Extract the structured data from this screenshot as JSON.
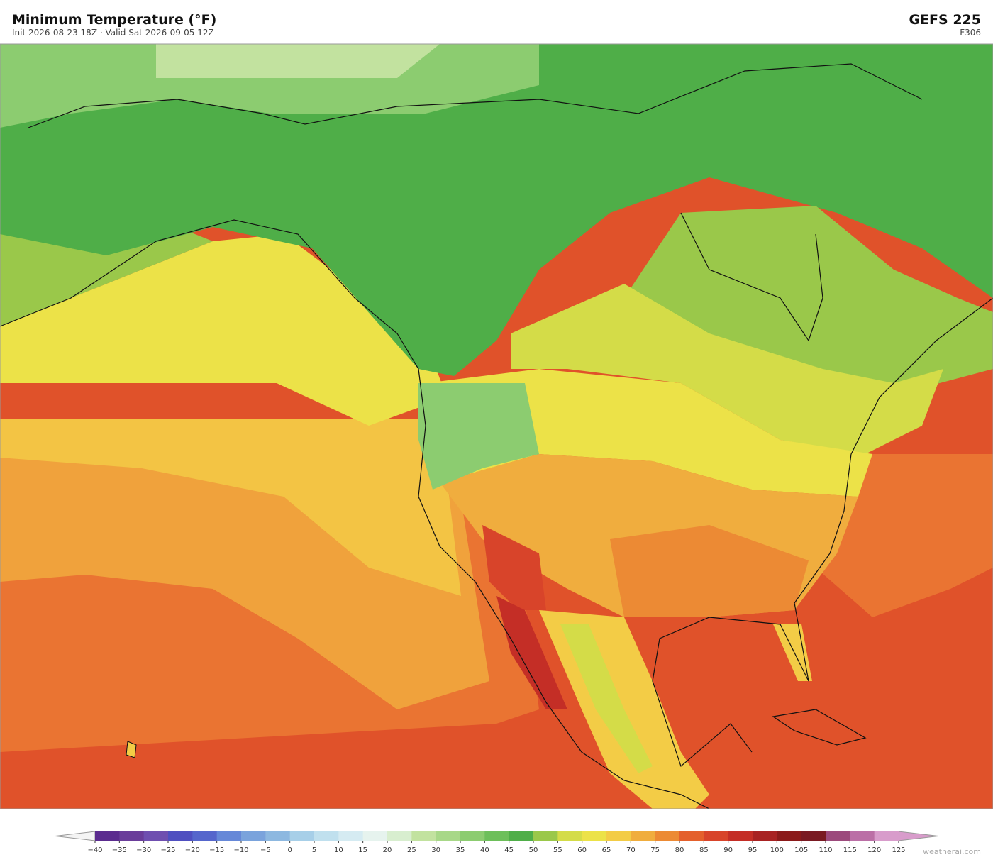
{
  "header": {
    "title": "Minimum Temperature  (°F)",
    "subtitle": "Init 2026-08-23 18Z   ·   Valid Sat 2026-09-05 12Z",
    "model": "GEFS  225",
    "forecast_hour": "F306"
  },
  "colorbar": {
    "ticks": [
      {
        "value": -40,
        "label": "−40"
      },
      {
        "value": -35,
        "label": "−35"
      },
      {
        "value": -30,
        "label": "−30"
      },
      {
        "value": -25,
        "label": "−25"
      },
      {
        "value": -20,
        "label": "−20"
      },
      {
        "value": -15,
        "label": "−15"
      },
      {
        "value": -10,
        "label": "−10"
      },
      {
        "value": -5,
        "label": "−5"
      },
      0,
      5,
      10,
      15,
      20,
      25,
      30,
      35,
      40,
      45,
      50,
      55,
      60,
      65,
      70,
      75,
      80,
      85,
      90,
      95,
      100,
      105,
      110,
      115,
      120,
      125
    ],
    "colors": [
      "#5b2c8f",
      "#6a3d9a",
      "#6f4fb0",
      "#4f4fc0",
      "#5566cc",
      "#6688d8",
      "#7aa3dc",
      "#8db8e0",
      "#a7cfe8",
      "#c0e0ee",
      "#d5ebf2",
      "#e6f3ee",
      "#d8eecf",
      "#c2e29f",
      "#a8d888",
      "#8ccc70",
      "#6dbf5a",
      "#4fae48",
      "#9ac84a",
      "#d4dc48",
      "#ece248",
      "#f3cc46",
      "#f0ad3e",
      "#ec8a34",
      "#e4602c",
      "#d8442a",
      "#c42e26",
      "#a82222",
      "#8b1a1a",
      "#7a1a22",
      "#9c4a7c",
      "#bb6fa6",
      "#d89ccb"
    ],
    "under_color": "#f4f4f4",
    "over_color": "#d89ccb"
  },
  "watermark": "weatherai.com"
}
